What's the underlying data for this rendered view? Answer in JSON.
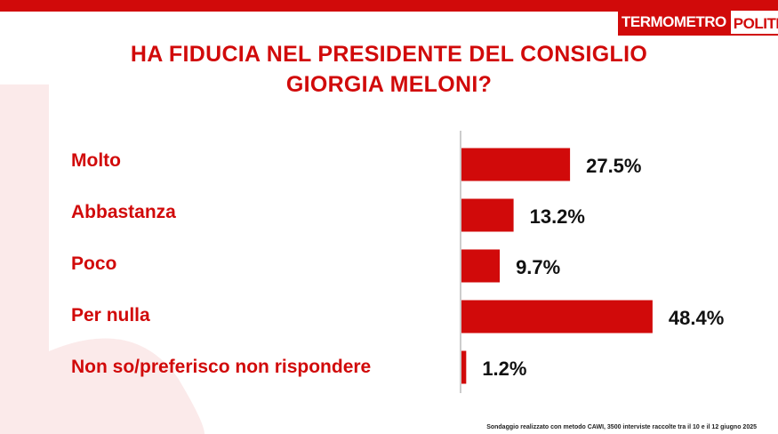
{
  "brand": {
    "part1": "TERMOMETRO",
    "part2": "POLITICO",
    "accent": "#d10a0a"
  },
  "title": {
    "line1": "HA FIDUCIA NEL PRESIDENTE DEL CONSIGLIO",
    "line2": "GIORGIA MELONI?"
  },
  "chart_data": {
    "type": "bar",
    "orientation": "horizontal",
    "categories": [
      "Molto",
      "Abbastanza",
      "Poco",
      "Per nulla",
      "Non so/preferisco non rispondere"
    ],
    "values": [
      27.5,
      13.2,
      9.7,
      48.4,
      1.2
    ],
    "value_labels": [
      "27.5%",
      "13.2%",
      "9.7%",
      "48.4%",
      "1.2%"
    ],
    "bar_color": "#d10a0a",
    "xlim": [
      0,
      50
    ],
    "grid": false
  },
  "footnote": "Sondaggio realizzato con metodo CAWI, 3500 interviste raccolte tra il 10 e il 12 giugno 2025"
}
